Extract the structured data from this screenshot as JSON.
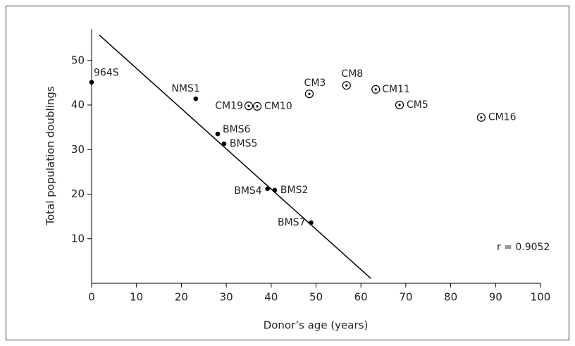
{
  "chart_data": {
    "type": "scatter",
    "xlabel": "Donor’s age (years)",
    "ylabel": "Total population doublings",
    "xlim": [
      0,
      100
    ],
    "xticks": [
      0,
      10,
      20,
      30,
      40,
      50,
      60,
      70,
      80,
      90,
      100
    ],
    "ylim": [
      0,
      57
    ],
    "yticks": [
      10,
      20,
      30,
      40,
      50
    ],
    "series": [
      {
        "marker": "filled",
        "color": "#000000",
        "labels": [
          "964S",
          "NMS1",
          "BMS6",
          "BMS5",
          "BMS4",
          "BMS2",
          "BMS7"
        ],
        "x": [
          0,
          23.2,
          28.1,
          29.5,
          39.2,
          40.8,
          48.9
        ],
        "values": [
          45.1,
          41.4,
          33.5,
          31.3,
          21.2,
          20.9,
          13.6
        ]
      },
      {
        "marker": "open",
        "color": "#000000",
        "labels": [
          "CM19",
          "CM10",
          "CM3",
          "CM8",
          "CM11",
          "CM5",
          "CM16"
        ],
        "x": [
          35.0,
          36.9,
          48.5,
          56.8,
          63.3,
          68.6,
          86.8
        ],
        "values": [
          39.8,
          39.7,
          42.5,
          44.4,
          43.5,
          40.0,
          37.2
        ]
      }
    ],
    "fit_line": {
      "x": [
        1.7,
        62.2
      ],
      "values": [
        55.7,
        1.1
      ]
    },
    "annotation": "r = 0.9052"
  }
}
